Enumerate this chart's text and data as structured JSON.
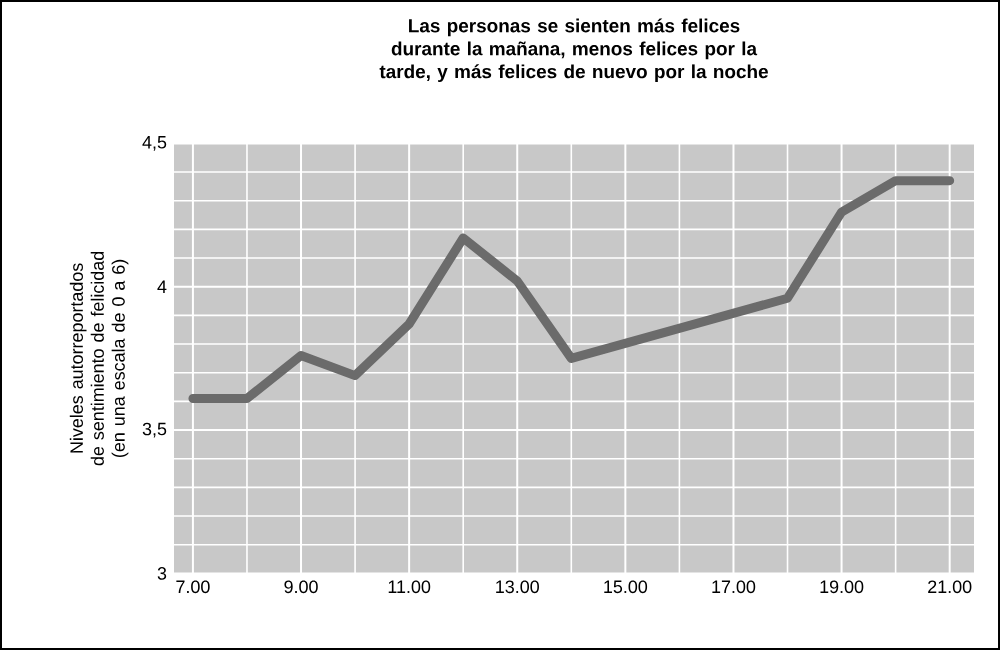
{
  "chart_data": {
    "type": "line",
    "title": "Las personas se sienten más felices durante la mañana, menos felices por la tarde, y más felices de nuevo por la noche",
    "ylabel": "Niveles autorreportados de sentimiento de felicidad (en una escala de 0 a 6)",
    "x": [
      7,
      8,
      9,
      10,
      11,
      12,
      13,
      14,
      18,
      19,
      20,
      21
    ],
    "series": [
      {
        "color": "#6b6b6b",
        "values": [
          3.61,
          3.61,
          3.76,
          3.69,
          3.87,
          4.17,
          4.02,
          3.75,
          3.96,
          4.26,
          4.37,
          4.37
        ]
      }
    ],
    "xlim": [
      6.65,
      21.45
    ],
    "ylim": [
      3,
      4.5
    ],
    "xticks": [
      {
        "value": 7,
        "label": "7.00"
      },
      {
        "value": 9,
        "label": "9.00"
      },
      {
        "value": 11,
        "label": "11.00"
      },
      {
        "value": 13,
        "label": "13.00"
      },
      {
        "value": 15,
        "label": "15.00"
      },
      {
        "value": 17,
        "label": "17.00"
      },
      {
        "value": 19,
        "label": "19.00"
      },
      {
        "value": 21,
        "label": "21.00"
      }
    ],
    "yticks": [
      3,
      {
        "value": 3.5,
        "label": "3,5"
      },
      4,
      {
        "value": 4.5,
        "label": "4,5"
      }
    ],
    "grid": true,
    "marker": "none",
    "line_style": "solid"
  }
}
